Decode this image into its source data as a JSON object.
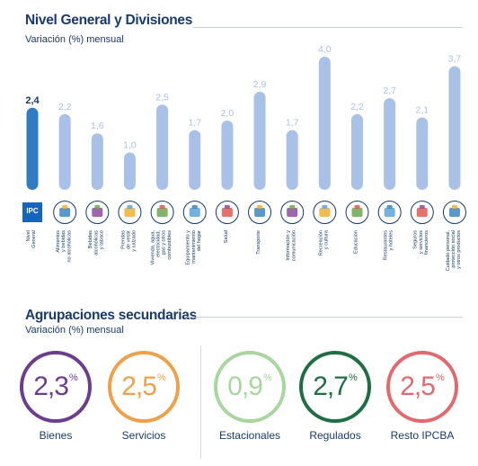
{
  "section1": {
    "title": "Nivel General y Divisiones",
    "subtitle": "Variación (%) mensual"
  },
  "section2": {
    "title": "Agrupaciones secundarias",
    "subtitle": "Variación (%) mensual"
  },
  "chart_data": {
    "type": "bar",
    "title": "Nivel General y Divisiones",
    "subtitle": "Variación (%) mensual",
    "categories": [
      "Nivel General",
      "Alimentos y bebidas no alcohólicas",
      "Bebidas alcohólicas y tabaco",
      "Prendas de vestir y calzado",
      "Vivienda, agua, electricidad, gas y otros combustibles",
      "Equipamiento y mantenimiento del hogar",
      "Salud",
      "Transporte",
      "Información y comunicación",
      "Recreación y cultura",
      "Educación",
      "Restaurantes y hoteles",
      "Seguros y servicios financieros",
      "Cuidado personal, protección social y otros productos"
    ],
    "category_lines": [
      [
        "Nivel",
        "General"
      ],
      [
        "Alimentos",
        "y bebidas",
        "no alcohólicas"
      ],
      [
        "Bebidas",
        "alcohólicas",
        "y tabaco"
      ],
      [
        "Prendas",
        "de vestir",
        "y calzado"
      ],
      [
        "Vivienda, agua,",
        "electricidad,",
        "gas y otros",
        "combustibles"
      ],
      [
        "Equipamiento y",
        "mantenimiento",
        "del hogar"
      ],
      [
        "Salud"
      ],
      [
        "Transporte"
      ],
      [
        "Información y",
        "comunicación"
      ],
      [
        "Recreación",
        "y cultura"
      ],
      [
        "Educación"
      ],
      [
        "Restaurantes",
        "y hoteles"
      ],
      [
        "Seguros",
        "y servicios",
        "financieros"
      ],
      [
        "Cuidado personal,",
        "protección social",
        "y otros productos"
      ]
    ],
    "values": [
      2.4,
      2.2,
      1.6,
      1.0,
      2.5,
      1.7,
      2.0,
      2.9,
      1.7,
      4.0,
      2.2,
      2.7,
      2.1,
      3.7
    ],
    "value_labels": [
      "2,4",
      "2,2",
      "1,6",
      "1,0",
      "2,5",
      "1,7",
      "2,0",
      "2,9",
      "1,7",
      "4,0",
      "2,2",
      "2,7",
      "2,1",
      "3,7"
    ],
    "highlight_index": 0,
    "colors": {
      "highlight": "#2f7cc4",
      "bar": "#a9c1e6",
      "highlight_label": "#1a3a6b",
      "label": "#a9c1e6"
    },
    "icons": [
      "ipc-logo",
      "groceries-icon",
      "wine-bottle-icon",
      "shirt-icon",
      "house-icon",
      "appliance-icon",
      "doctor-icon",
      "airplane-icon",
      "laptop-icon",
      "movie-ticket-icon",
      "school-icon",
      "restaurant-cloche-icon",
      "bank-icon",
      "personal-care-icon"
    ],
    "logo_text": "IPC"
  },
  "groups": [
    {
      "name": "Bienes",
      "value": "2,3",
      "unit": "%",
      "color": "#6b3d8f"
    },
    {
      "name": "Servicios",
      "value": "2,5",
      "unit": "%",
      "color": "#f0a04b"
    },
    {
      "name": "Estacionales",
      "value": "0,9",
      "unit": "%",
      "color": "#a8d5a0"
    },
    {
      "name": "Regulados",
      "value": "2,7",
      "unit": "%",
      "color": "#1f6e43"
    },
    {
      "name": "Resto IPCBA",
      "value": "2,5",
      "unit": "%",
      "color": "#e06a6e"
    }
  ]
}
